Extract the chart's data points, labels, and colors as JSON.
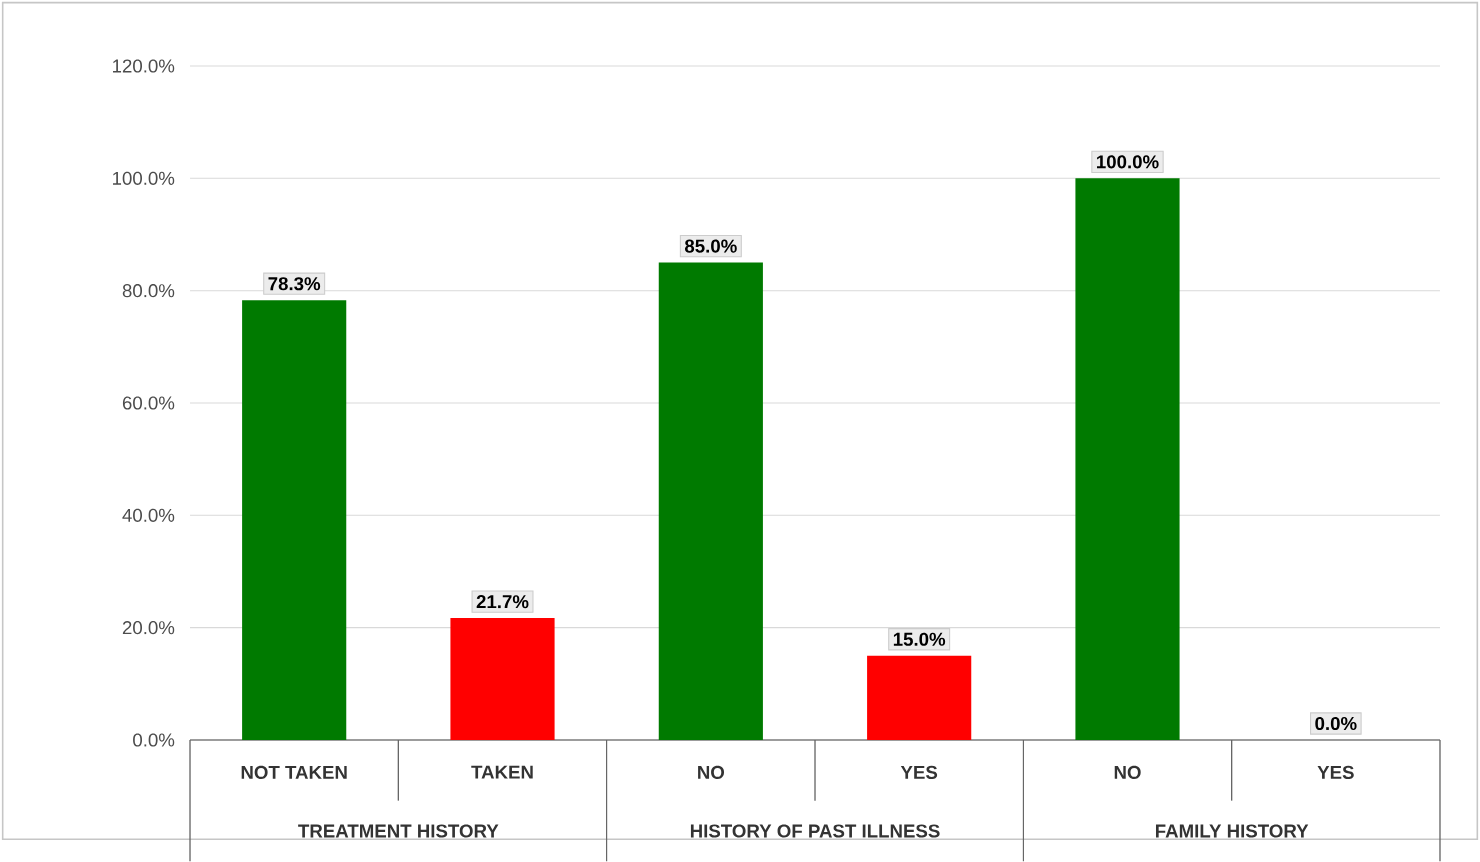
{
  "chart_data": {
    "type": "bar",
    "categories": [
      "NOT TAKEN",
      "TAKEN",
      "NO",
      "YES",
      "NO",
      "YES"
    ],
    "values": [
      78.3,
      21.7,
      85.0,
      15.0,
      100.0,
      0.0
    ],
    "colors": [
      "#007a00",
      "#ff0000",
      "#007a00",
      "#ff0000",
      "#007a00",
      "#ff0000"
    ],
    "value_labels": [
      "78.3%",
      "21.7%",
      "85.0%",
      "15.0%",
      "100.0%",
      "0.0%"
    ],
    "annotations": [
      "TREATMENT HISTORY",
      "HISTORY OF PAST ILLNESS",
      "FAMILY HISTORY"
    ],
    "ylim": [
      0,
      120
    ],
    "yticks": [
      {
        "value": 0,
        "label": "0.0%"
      },
      {
        "value": 20,
        "label": "20.0%"
      },
      {
        "value": 40,
        "label": "40.0%"
      },
      {
        "value": 60,
        "label": "60.0%"
      },
      {
        "value": 80,
        "label": "80.0%"
      },
      {
        "value": 100,
        "label": "100.0%"
      },
      {
        "value": 120,
        "label": "120.0%"
      }
    ],
    "grid": "y"
  }
}
